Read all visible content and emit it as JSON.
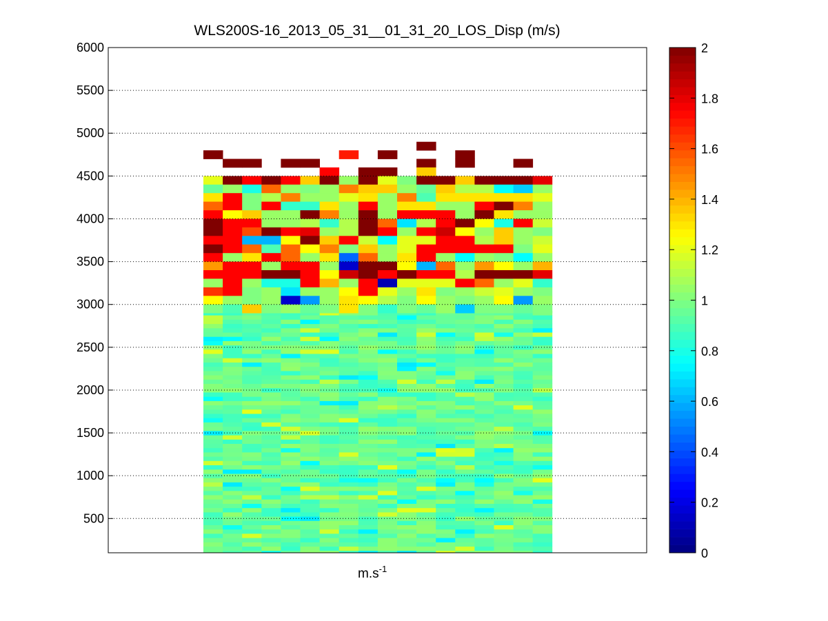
{
  "chart_data": {
    "type": "heatmap",
    "title": "WLS200S-16_2013_05_31__01_31_20_LOS_Disp (m/s)",
    "xlabel": "m.s",
    "xlabel_sup": "-1",
    "ylabel": "",
    "ylim": [
      100,
      6000
    ],
    "yticks": [
      500,
      1000,
      1500,
      2000,
      2500,
      3000,
      3500,
      4000,
      4500,
      5000,
      5500,
      6000
    ],
    "ytick_labels": [
      "500",
      "1000",
      "1500",
      "2000",
      "2500",
      "3000",
      "3500",
      "4000",
      "4500",
      "5000",
      "5500",
      "6000"
    ],
    "grid": true,
    "colorbar": {
      "colormap": "jet",
      "clim": [
        0,
        2
      ],
      "ticks": [
        0,
        0.2,
        0.4,
        0.6,
        0.8,
        1,
        1.2,
        1.4,
        1.6,
        1.8,
        2
      ],
      "tick_labels": [
        "0",
        "0.2",
        "0.4",
        "0.6",
        "0.8",
        "1",
        "1.2",
        "1.4",
        "1.6",
        "1.8",
        "2"
      ]
    },
    "columns": 18,
    "range_gate_m": 50,
    "upper_rows": [
      {
        "y": 4850,
        "values": [
          null,
          null,
          null,
          null,
          null,
          null,
          null,
          null,
          null,
          null,
          null,
          2.0,
          null,
          null,
          null,
          null,
          null,
          null
        ]
      },
      {
        "y": 4750,
        "values": [
          2.0,
          null,
          null,
          null,
          null,
          null,
          null,
          1.7,
          null,
          2.0,
          null,
          null,
          null,
          2.0,
          null,
          null,
          null,
          null
        ]
      },
      {
        "y": 4650,
        "values": [
          null,
          2.0,
          2.0,
          null,
          2.0,
          2.0,
          null,
          null,
          null,
          null,
          null,
          2.0,
          null,
          2.0,
          null,
          null,
          2.0,
          null
        ]
      },
      {
        "y": 4550,
        "values": [
          null,
          null,
          null,
          null,
          null,
          null,
          1.75,
          null,
          2.0,
          2.0,
          null,
          1.35,
          null,
          null,
          null,
          null,
          null,
          null
        ]
      },
      {
        "y": 4450,
        "values": [
          1.2,
          2.0,
          1.75,
          2.0,
          1.75,
          1.35,
          2.0,
          1.05,
          2.0,
          1.2,
          1.0,
          2.0,
          2.0,
          1.35,
          2.0,
          2.0,
          2.0,
          1.8
        ]
      },
      {
        "y": 4350,
        "values": [
          0.95,
          1.05,
          0.8,
          1.55,
          1.05,
          1.0,
          1.05,
          1.5,
          1.35,
          1.35,
          1.05,
          0.95,
          1.35,
          1.1,
          1.1,
          0.75,
          0.65,
          1.05
        ]
      },
      {
        "y": 4250,
        "values": [
          1.3,
          1.75,
          1.0,
          1.1,
          1.5,
          1.05,
          1.05,
          1.2,
          1.3,
          1.05,
          1.5,
          0.9,
          1.3,
          1.3,
          1.3,
          1.3,
          1.3,
          1.2
        ]
      },
      {
        "y": 4150,
        "values": [
          1.55,
          1.75,
          1.0,
          1.75,
          0.85,
          0.85,
          1.3,
          1.05,
          1.75,
          1.05,
          1.3,
          1.3,
          1.05,
          1.05,
          1.75,
          2.0,
          1.5,
          1.05
        ]
      },
      {
        "y": 4050,
        "values": [
          1.75,
          1.25,
          1.35,
          1.05,
          1.05,
          2.0,
          1.5,
          1.05,
          2.0,
          1.05,
          1.75,
          1.75,
          1.75,
          1.05,
          2.0,
          1.3,
          1.05,
          1.05
        ]
      },
      {
        "y": 3950,
        "values": [
          2.0,
          1.75,
          1.75,
          1.05,
          1.05,
          1.1,
          0.85,
          1.1,
          2.0,
          1.55,
          0.7,
          1.1,
          1.75,
          2.0,
          1.25,
          0.8,
          1.75,
          1.15
        ]
      },
      {
        "y": 3850,
        "values": [
          2.0,
          1.75,
          1.6,
          2.0,
          1.75,
          1.8,
          1.05,
          1.1,
          2.0,
          1.75,
          1.05,
          1.75,
          1.85,
          1.25,
          1.05,
          1.35,
          1.05,
          1.0
        ]
      },
      {
        "y": 3750,
        "values": [
          1.75,
          1.75,
          0.6,
          0.6,
          1.25,
          2.0,
          1.35,
          1.75,
          1.15,
          0.75,
          1.2,
          1.2,
          1.75,
          1.75,
          1.1,
          1.35,
          1.05,
          1.15
        ]
      },
      {
        "y": 3650,
        "values": [
          2.0,
          1.75,
          1.55,
          0.9,
          1.55,
          1.25,
          1.5,
          1.0,
          1.35,
          1.05,
          1.2,
          1.75,
          1.75,
          1.75,
          1.75,
          1.75,
          1.0,
          1.2
        ]
      },
      {
        "y": 3550,
        "values": [
          1.75,
          1.05,
          1.3,
          1.75,
          1.55,
          1.05,
          1.3,
          0.45,
          1.55,
          1.05,
          1.3,
          1.75,
          1.05,
          0.75,
          1.05,
          1.0,
          0.75,
          1.05
        ]
      },
      {
        "y": 3450,
        "values": [
          1.45,
          1.75,
          1.75,
          1.05,
          1.75,
          1.75,
          1.05,
          0.15,
          2.0,
          2.0,
          1.25,
          0.6,
          1.55,
          1.05,
          1.45,
          1.25,
          1.05,
          1.4
        ]
      },
      {
        "y": 3350,
        "values": [
          1.75,
          1.75,
          1.75,
          2.0,
          2.0,
          1.75,
          1.25,
          1.85,
          2.0,
          1.75,
          2.0,
          1.75,
          1.75,
          1.1,
          2.0,
          2.0,
          2.0,
          1.8
        ]
      },
      {
        "y": 3250,
        "values": [
          1.05,
          1.75,
          1.05,
          0.8,
          0.8,
          1.75,
          1.4,
          1.05,
          1.75,
          0.1,
          1.2,
          1.2,
          1.2,
          1.75,
          1.55,
          1.05,
          1.2,
          0.85
        ]
      },
      {
        "y": 3150,
        "values": [
          1.65,
          1.75,
          1.0,
          1.05,
          0.7,
          1.05,
          1.05,
          1.25,
          1.75,
          1.2,
          1.05,
          1.3,
          1.0,
          1.05,
          1.15,
          1.2,
          1.05,
          1.0
        ]
      },
      {
        "y": 3050,
        "values": [
          1.25,
          1.05,
          1.0,
          1.05,
          0.15,
          0.55,
          1.05,
          1.3,
          1.25,
          1.1,
          1.0,
          1.25,
          1.05,
          1.0,
          1.05,
          1.25,
          0.55,
          1.05
        ]
      },
      {
        "y": 2950,
        "values": [
          1.0,
          0.9,
          1.35,
          1.0,
          1.05,
          0.95,
          1.0,
          1.3,
          1.0,
          0.85,
          1.0,
          0.95,
          1.05,
          0.65,
          1.0,
          1.0,
          0.95,
          1.0
        ]
      }
    ],
    "lower_region": {
      "y_range": [
        100,
        2900
      ],
      "value_range": [
        0.7,
        1.2
      ],
      "dominant_value": 0.95
    }
  }
}
